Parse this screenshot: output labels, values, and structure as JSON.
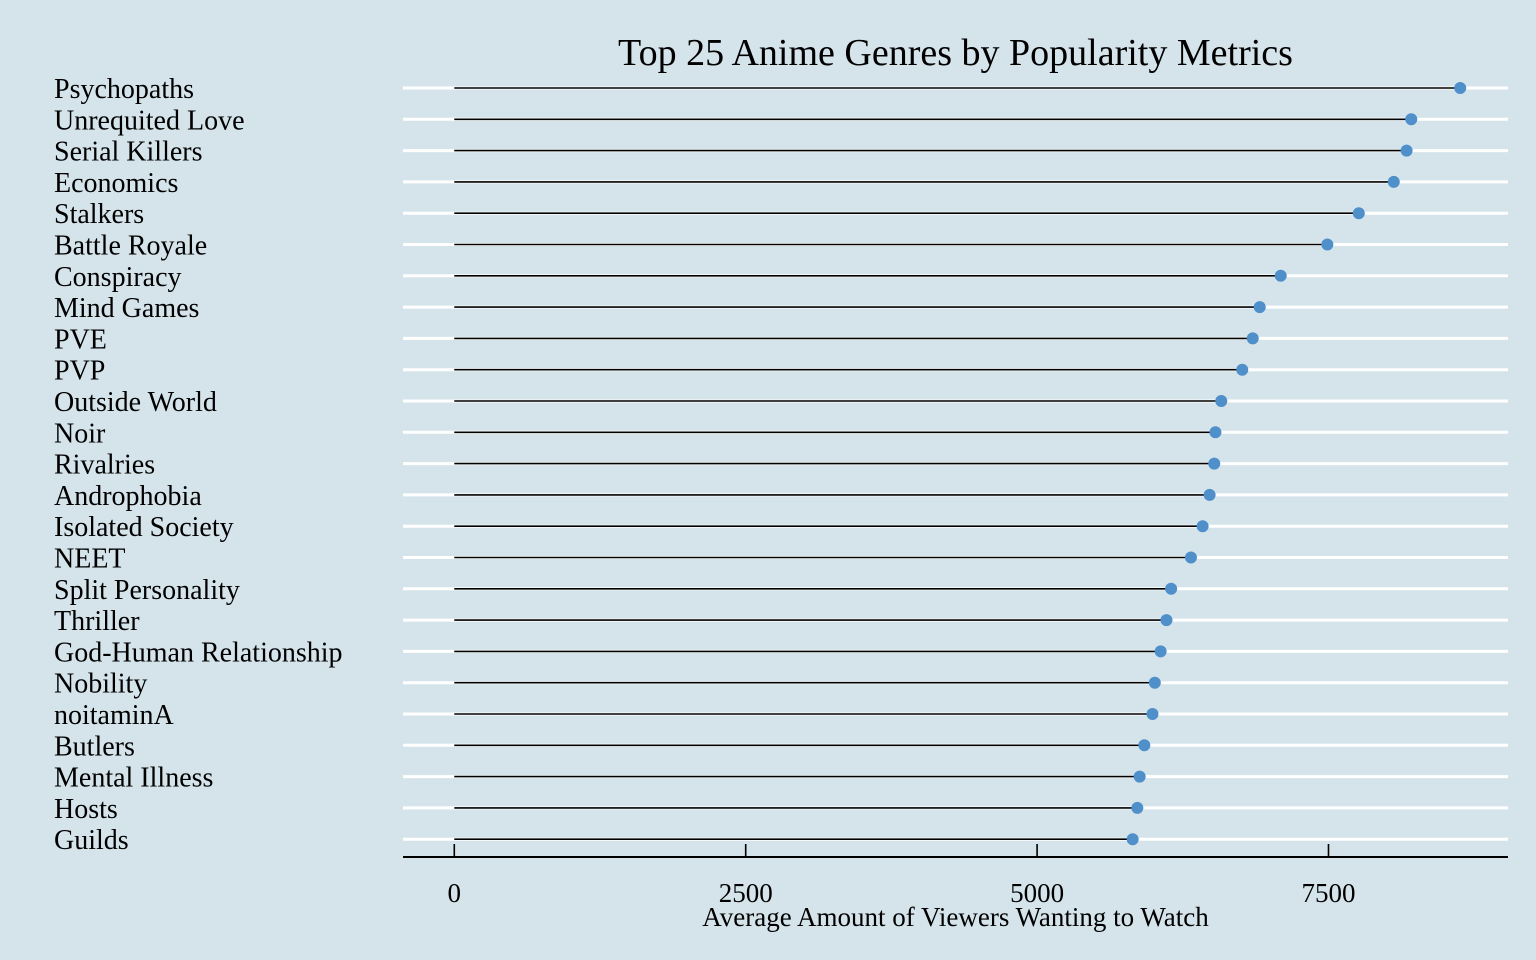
{
  "chart_data": {
    "type": "lollipop",
    "title": "Top 25 Anime Genres by Popularity Metrics",
    "xlabel": "Average Amount of Viewers Wanting to Watch",
    "ylabel": "",
    "xlim": [
      -440,
      9040
    ],
    "xticks": [
      0,
      2500,
      5000,
      7500
    ],
    "xtick_labels": [
      "0",
      "2500",
      "5000",
      "7500"
    ],
    "grid": "horizontal",
    "categories": [
      "Psychopaths",
      "Unrequited Love",
      "Serial Killers",
      "Economics",
      "Stalkers",
      "Battle Royale",
      "Conspiracy",
      "Mind Games",
      "PVE",
      "PVP",
      "Outside World",
      "Noir",
      "Rivalries",
      "Androphobia",
      "Isolated Society",
      "NEET",
      "Split Personality",
      "Thriller",
      "God-Human Relationship",
      "Nobility",
      "noitaminA",
      "Butlers",
      "Mental Illness",
      "Hosts",
      "Guilds"
    ],
    "values": [
      8630,
      8210,
      8170,
      8060,
      7760,
      7490,
      7090,
      6910,
      6850,
      6760,
      6580,
      6530,
      6520,
      6480,
      6420,
      6320,
      6150,
      6110,
      6060,
      6010,
      5990,
      5920,
      5880,
      5860,
      5820
    ],
    "colors": {
      "background": "#d5e4eb",
      "gridline": "#ffffff",
      "stem": "#000000",
      "point": "#4f8fca",
      "axis": "#000000"
    }
  }
}
